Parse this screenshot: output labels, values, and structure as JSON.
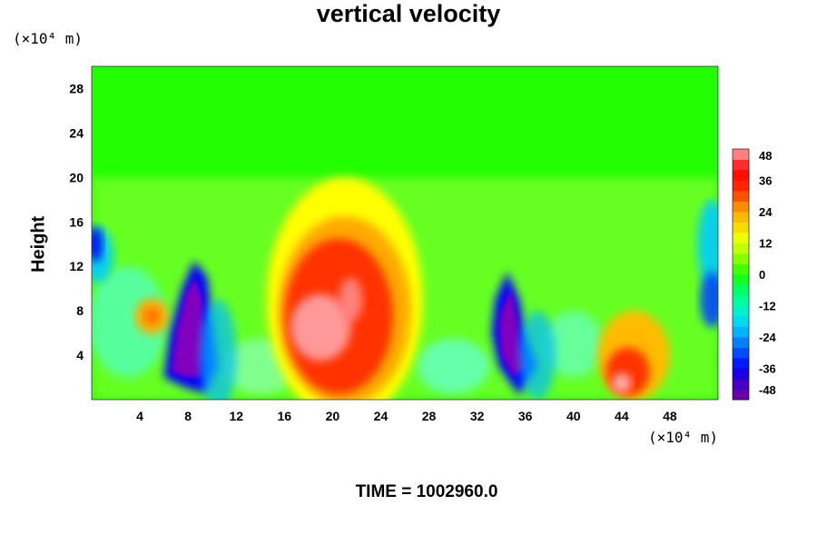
{
  "chart_data": {
    "type": "heatmap",
    "title": "vertical velocity",
    "xlabel": "",
    "ylabel": "Height",
    "x_unit": "(×10⁴ m)",
    "y_unit": "(×10⁴ m)",
    "xlim": [
      0,
      52
    ],
    "ylim": [
      0,
      30
    ],
    "xticks": [
      4,
      8,
      12,
      16,
      20,
      24,
      28,
      32,
      36,
      40,
      44,
      48
    ],
    "yticks": [
      4,
      8,
      12,
      16,
      20,
      24,
      28
    ],
    "colorbar": {
      "min": -48,
      "max": 48,
      "step": 4,
      "tick_labels": [
        48,
        36,
        24,
        12,
        0,
        -12,
        -24,
        -36,
        -48
      ]
    },
    "features": [
      {
        "kind": "updraft",
        "center": [
          21,
          8
        ],
        "peak": 48
      },
      {
        "kind": "updraft",
        "center": [
          44,
          3
        ],
        "peak": 48
      },
      {
        "kind": "downdraft",
        "center": [
          8,
          6
        ],
        "peak": -48
      },
      {
        "kind": "downdraft",
        "center": [
          35,
          6
        ],
        "peak": -48
      }
    ],
    "grid": false,
    "annotation": "TIME = 1002960.0"
  }
}
